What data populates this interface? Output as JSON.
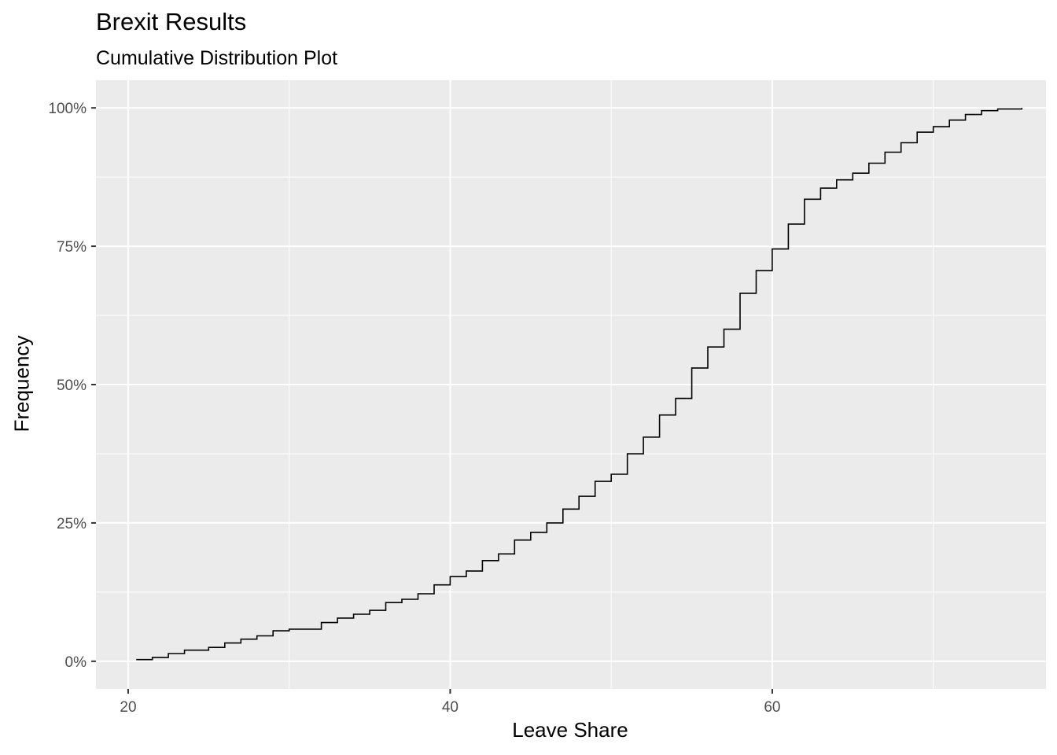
{
  "chart_data": {
    "type": "line",
    "title": "Brexit Results",
    "subtitle": "Cumulative Distribution Plot",
    "xlabel": "Leave Share",
    "ylabel": "Frequency",
    "xlim": [
      18,
      77
    ],
    "ylim": [
      -0.05,
      1.05
    ],
    "x_ticks": [
      20,
      40,
      60
    ],
    "x_tick_labels": [
      "20",
      "40",
      "60"
    ],
    "x_minor_ticks": [
      30,
      50,
      70
    ],
    "y_ticks": [
      0,
      0.25,
      0.5,
      0.75,
      1.0
    ],
    "y_tick_labels": [
      "0%",
      "25%",
      "50%",
      "75%",
      "100%"
    ],
    "y_minor_ticks": [
      0.125,
      0.375,
      0.625,
      0.875
    ],
    "grid": true,
    "background": "#ebebeb",
    "gridline_color": "#ffffff",
    "line_color": "#000000",
    "series": [
      {
        "x": [
          20.5,
          21.5,
          22.5,
          23.5,
          25.0,
          26.0,
          27.0,
          28.0,
          29.0,
          30.0,
          31.0,
          32.0,
          33.0,
          34.0,
          35.0,
          36.0,
          37.0,
          38.0,
          39.0,
          40.0,
          41.0,
          42.0,
          43.0,
          44.0,
          45.0,
          46.0,
          47.0,
          48.0,
          49.0,
          50.0,
          51.0,
          52.0,
          53.0,
          54.0,
          55.0,
          56.0,
          57.0,
          58.0,
          59.0,
          60.0,
          61.0,
          62.0,
          63.0,
          64.0,
          65.0,
          66.0,
          67.0,
          68.0,
          69.0,
          70.0,
          71.0,
          72.0,
          73.0,
          74.0,
          75.5
        ],
        "y": [
          0.003,
          0.007,
          0.014,
          0.02,
          0.025,
          0.033,
          0.04,
          0.046,
          0.055,
          0.058,
          0.058,
          0.07,
          0.078,
          0.085,
          0.092,
          0.106,
          0.112,
          0.122,
          0.138,
          0.153,
          0.163,
          0.182,
          0.194,
          0.219,
          0.233,
          0.25,
          0.275,
          0.298,
          0.325,
          0.338,
          0.375,
          0.405,
          0.445,
          0.475,
          0.53,
          0.568,
          0.6,
          0.665,
          0.706,
          0.745,
          0.79,
          0.835,
          0.855,
          0.87,
          0.882,
          0.9,
          0.92,
          0.937,
          0.956,
          0.966,
          0.978,
          0.988,
          0.995,
          0.998,
          1.0
        ]
      }
    ]
  }
}
